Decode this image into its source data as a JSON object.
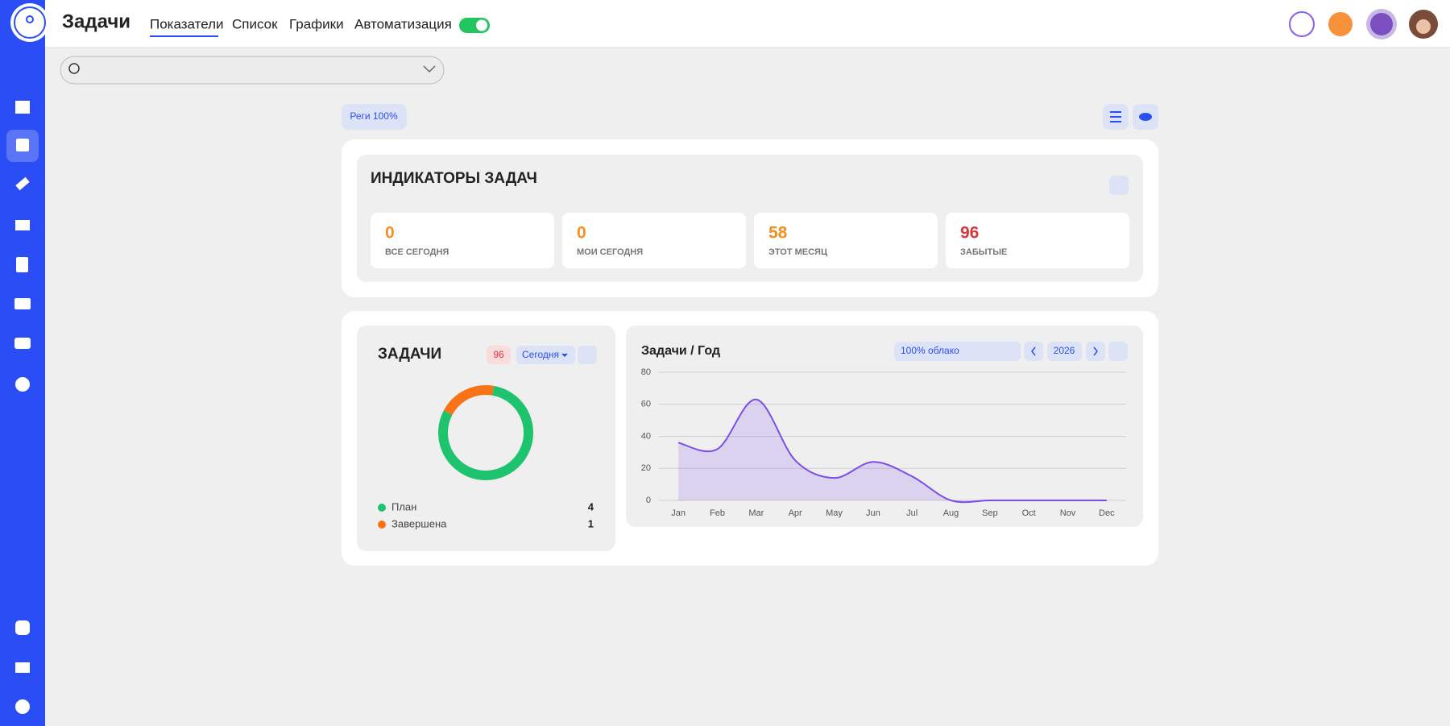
{
  "header": {
    "title": "Задачи",
    "tabs": [
      "Показатели",
      "Список",
      "Графики",
      "Автоматизация"
    ]
  },
  "toolbar": {
    "badge": "Реги 100%"
  },
  "indicators": {
    "title": "ИНДИКАТОРЫ ЗАДАЧ",
    "cards": [
      {
        "value": 0,
        "label": "ВСЕ СЕГОДНЯ",
        "color": "#f5901e"
      },
      {
        "value": 0,
        "label": "МОИ СЕГОДНЯ",
        "color": "#f5901e"
      },
      {
        "value": 58,
        "label": "ЭТОТ МЕСЯЦ",
        "color": "#f5901e"
      },
      {
        "value": 96,
        "label": "ЗАБЫТЫЕ",
        "color": "#d9363e"
      }
    ]
  },
  "tasks_panel": {
    "title": "ЗАДАЧИ",
    "count": 96,
    "filter": "Сегодня"
  },
  "year_panel": {
    "filter": "100% облако",
    "year": "2026"
  },
  "chart_data": [
    {
      "type": "pie",
      "categories": [
        "План",
        "Завершена"
      ],
      "values": [
        4,
        1
      ],
      "colors": [
        "#1ec36d",
        "#f97316"
      ]
    },
    {
      "type": "line",
      "title": "Задачи / Год",
      "categories": [
        "Jan",
        "Feb",
        "Mar",
        "Apr",
        "May",
        "Jun",
        "Jul",
        "Aug",
        "Sep",
        "Oct",
        "Nov",
        "Dec"
      ],
      "series": [
        {
          "color": "#7c4dea",
          "values": [
            36,
            32,
            63,
            25,
            14,
            24,
            15,
            0,
            0,
            0,
            0,
            0
          ]
        }
      ],
      "ylim": [
        0,
        80
      ],
      "yticks": [
        0,
        20,
        40,
        60,
        80
      ],
      "grid": true,
      "area": true
    }
  ]
}
